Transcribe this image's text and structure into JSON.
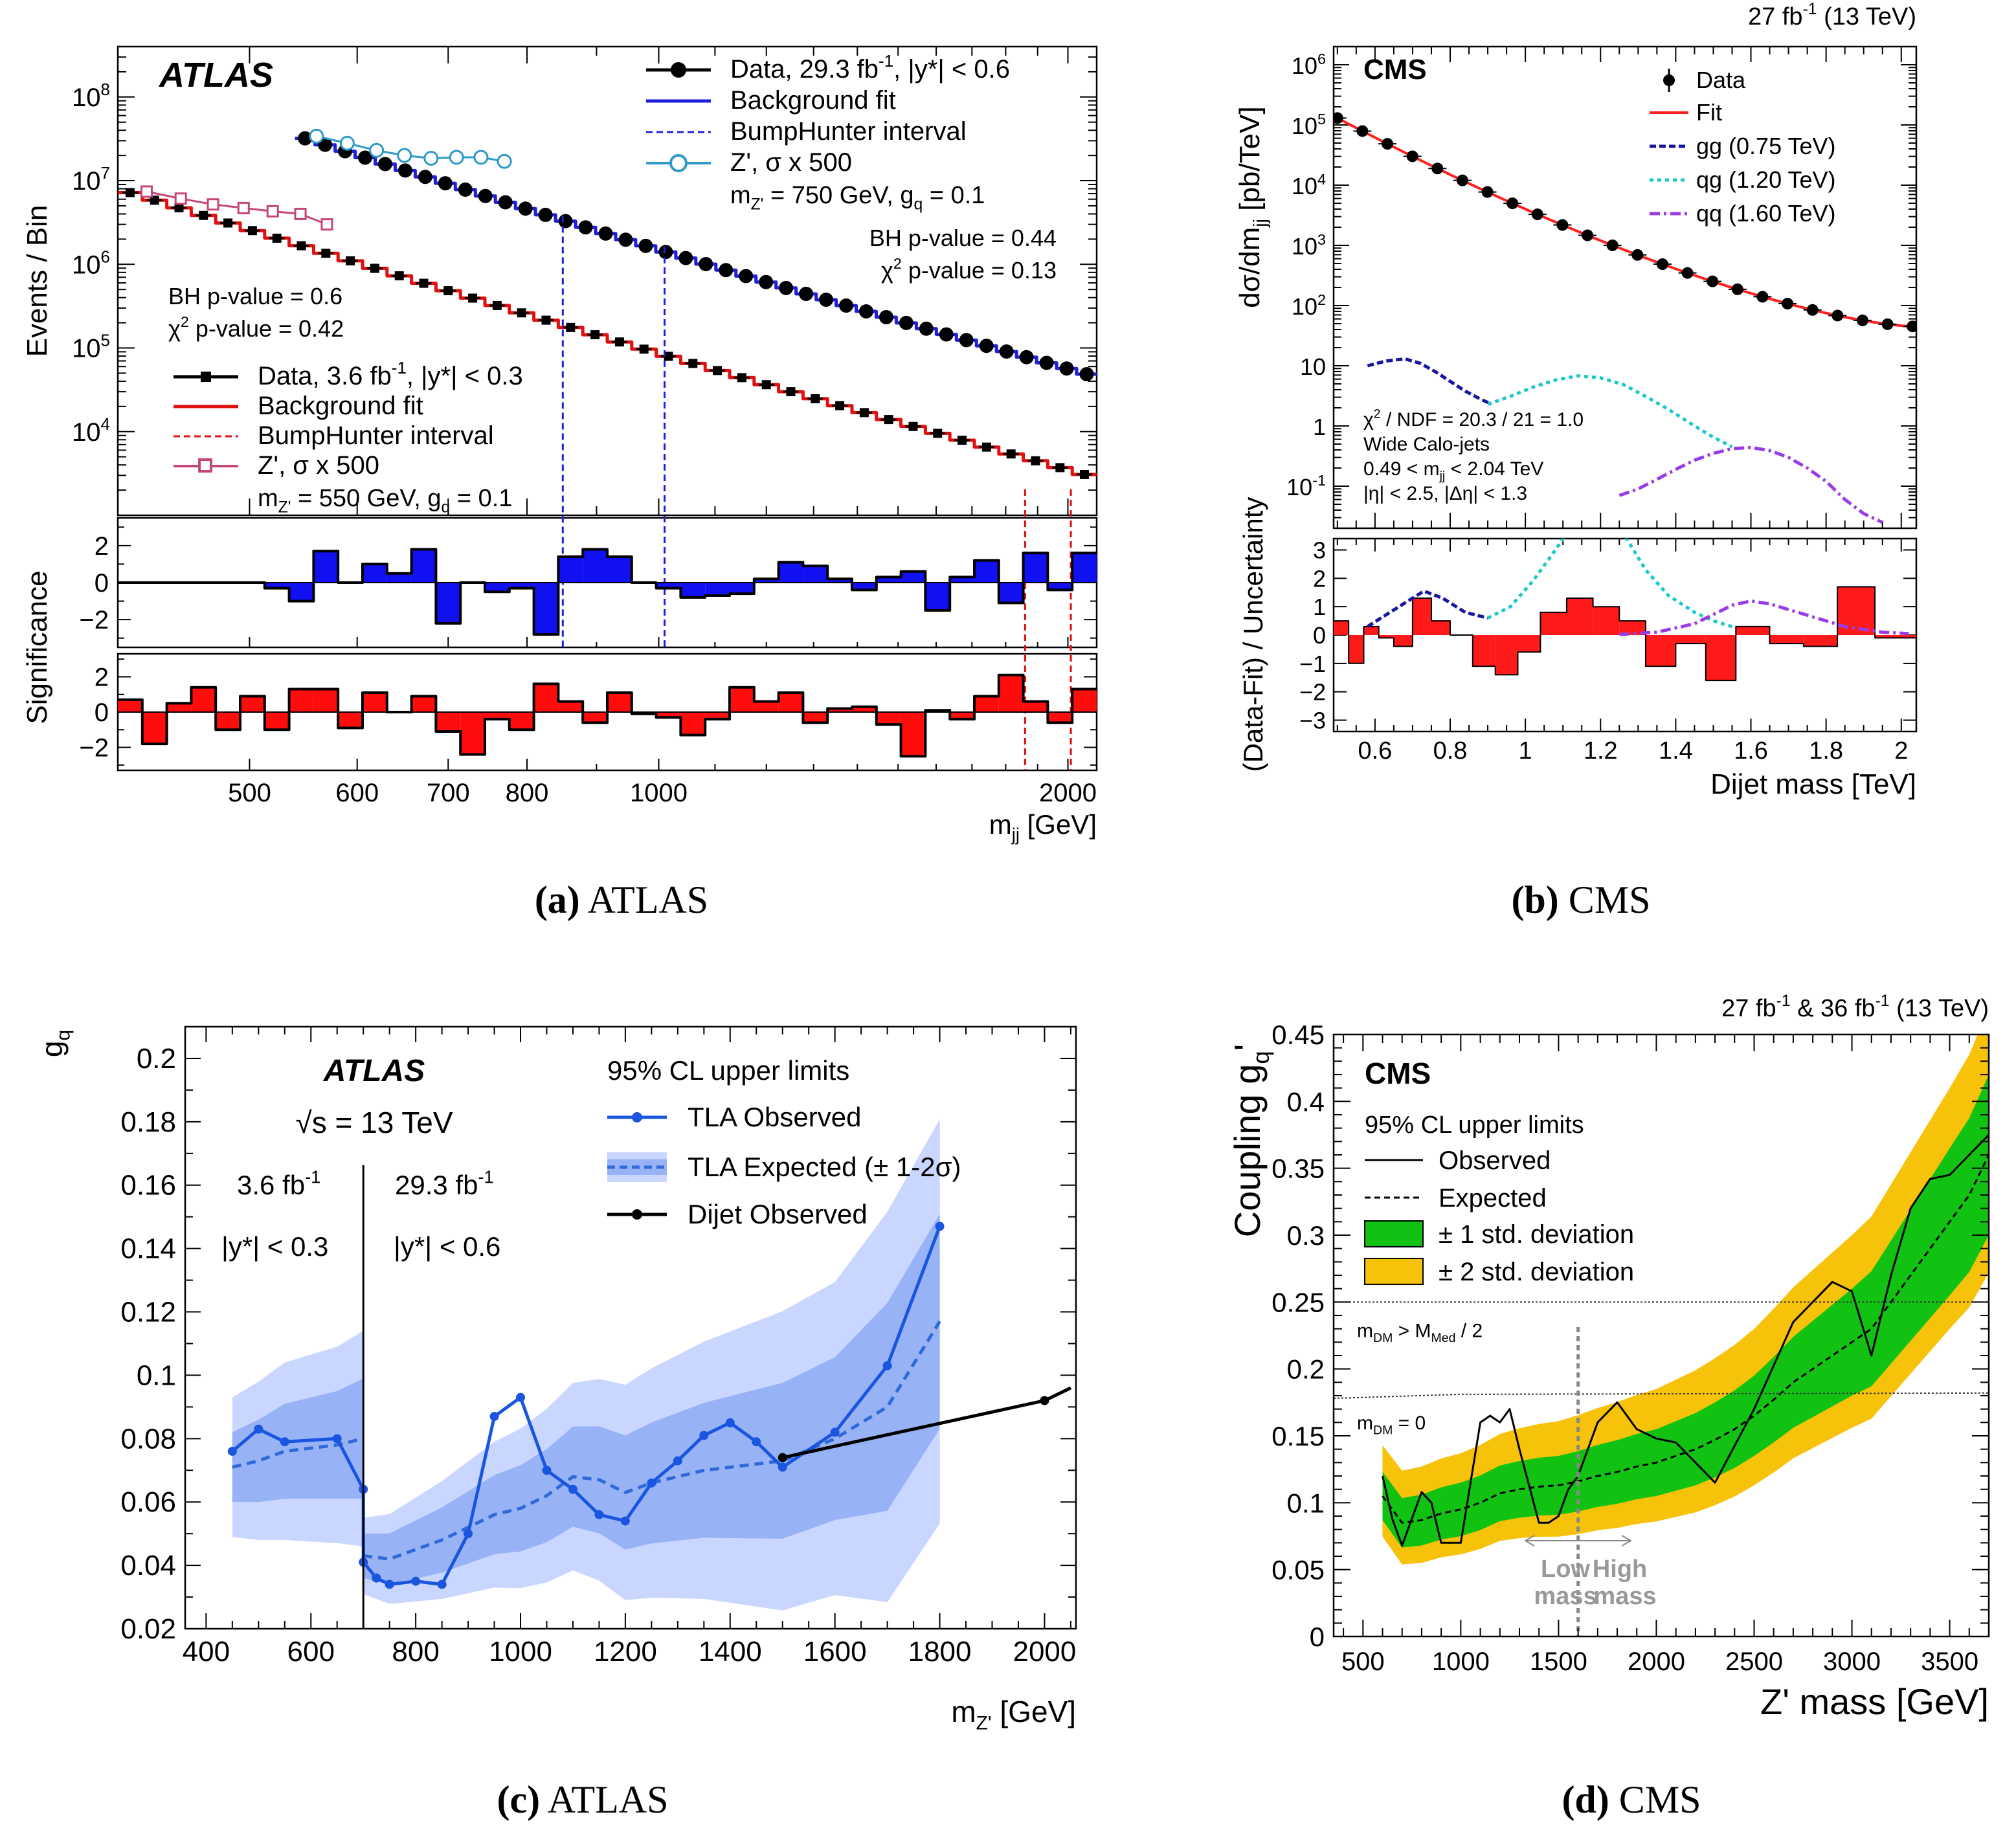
{
  "chart_data": [
    {
      "panel": "a",
      "type": "line",
      "caption_letter": "(a)",
      "caption_text": "ATLAS",
      "experiment": "ATLAS",
      "xlabel": "m_jj [GeV]",
      "xscale": "log",
      "xlim": [
        400,
        2100
      ],
      "x_ticks": [
        500,
        600,
        700,
        800,
        1000,
        2000
      ],
      "ylabel": "Events / Bin",
      "yscale": "log",
      "ylim": [
        1000,
        400000000
      ],
      "y_ticks": [
        "10^4",
        "10^5",
        "10^6",
        "10^7",
        "10^8"
      ],
      "legend_upper": [
        {
          "label": "Data, 29.3 fb^-1, |y*| < 0.6",
          "color": "#000000"
        },
        {
          "label": "Background fit",
          "color": "#1f1fdc"
        },
        {
          "label": "BumpHunter interval",
          "color": "#1f1fdc"
        },
        {
          "label": "Z', σ x 500",
          "color": "#2a9ac9"
        },
        {
          "label": "m_Z' = 750 GeV, g_q = 0.1",
          "color": "#000000"
        }
      ],
      "legend_lower": [
        {
          "label": "Data, 3.6 fb^-1, |y*| < 0.3",
          "color": "#000000"
        },
        {
          "label": "Background fit",
          "color": "#e01010"
        },
        {
          "label": "BumpHunter interval",
          "color": "#e01010"
        },
        {
          "label": "Z', σ x 500",
          "color": "#c8457a"
        },
        {
          "label": "m_Z' = 550 GeV, g_q = 0.1",
          "color": "#000000"
        }
      ],
      "annotations_upper": [
        "BH p-value = 0.44",
        "χ2 p-value = 0.13"
      ],
      "annotations_lower": [
        "BH p-value = 0.6",
        "χ2 p-value = 0.42"
      ],
      "series": [
        {
          "name": "Data, 29.3 fb^-1",
          "x_start": 540,
          "x_end": 2100,
          "y_start": 35000000,
          "y_end": 45000,
          "n_points": 40
        },
        {
          "name": "Data, 3.6 fb^-1",
          "x_start": 400,
          "x_end": 2100,
          "y_start": 8000000,
          "y_end": 2800,
          "n_points": 40
        },
        {
          "name": "Z' 750 GeV",
          "x": [
            560,
            590,
            620,
            650,
            680,
            710,
            740,
            770
          ],
          "y": [
            34000000,
            28000000,
            23000000,
            20000000,
            18500000,
            19000000,
            19000000,
            17000000
          ]
        },
        {
          "name": "Z' 550 GeV",
          "x": [
            420,
            445,
            470,
            495,
            520,
            545,
            570
          ],
          "y": [
            7400000,
            6100000,
            5200000,
            4700000,
            4300000,
            4000000,
            3000000
          ]
        }
      ],
      "bumphunter_upper": [
        850,
        1010
      ],
      "bumphunter_lower": [
        1860,
        2010
      ],
      "significance_ylabel": "Significance",
      "significance_ticks": [
        "2",
        "0",
        "−2"
      ],
      "significance_upper": [
        0,
        0,
        0,
        0,
        0,
        0,
        -0.3,
        -1,
        1.7,
        0,
        1,
        0.5,
        1.8,
        -2.2,
        0,
        -0.5,
        -0.3,
        -2.8,
        1.4,
        1.8,
        1.4,
        0,
        -0.3,
        -0.8,
        -0.7,
        -0.6,
        0.2,
        1.1,
        0.9,
        0.2,
        -0.4,
        0.3,
        0.6,
        -1.5,
        0.3,
        1.2,
        -1.1,
        1.6,
        -0.4,
        1.6
      ],
      "significance_lower": [
        0.7,
        -1.8,
        0.5,
        1.4,
        -1,
        0.9,
        -1,
        1.3,
        1.3,
        -0.9,
        1.1,
        0,
        0.9,
        -1.1,
        -2.4,
        -0.4,
        -1,
        1.6,
        0.6,
        -0.6,
        1.1,
        -0.1,
        -0.3,
        -1.3,
        -0.4,
        1.4,
        0.6,
        1.1,
        -0.6,
        0.2,
        0.3,
        -0.7,
        -2.5,
        0.1,
        -0.4,
        0.9,
        2.1,
        0.6,
        -0.6,
        1.3
      ]
    },
    {
      "panel": "b",
      "type": "line",
      "caption_letter": "(b)",
      "caption_text": "CMS",
      "experiment": "CMS",
      "lumi": "27 fb^-1 (13 TeV)",
      "xlabel": "Dijet mass [TeV]",
      "xlim": [
        0.49,
        2.04
      ],
      "x_ticks": [
        "0.6",
        "0.8",
        "1",
        "1.2",
        "1.4",
        "1.6",
        "1.8",
        "2"
      ],
      "ylabel": "dσ/dm_jj [pb/TeV]",
      "yscale": "log",
      "ylim": [
        0.02,
        2000000
      ],
      "y_ticks": [
        "10^-1",
        "1",
        "10",
        "10^2",
        "10^3",
        "10^4",
        "10^5",
        "10^6"
      ],
      "legend": [
        {
          "label": "Data",
          "color": "#000000"
        },
        {
          "label": "Fit",
          "color": "#ff2020"
        },
        {
          "label": "gg (0.75 TeV)",
          "color": "#1515a0"
        },
        {
          "label": "qg (1.20 TeV)",
          "color": "#1cc8c8"
        },
        {
          "label": "qq (1.60 TeV)",
          "color": "#9a3ce6"
        }
      ],
      "annotations": [
        "χ2 / NDF = 20.3 / 21 = 1.0",
        "Wide Calo-jets",
        "0.49 < m_jj < 2.04 TeV",
        "|η| < 2.5, |Δη| < 1.3"
      ],
      "data": {
        "x_start": 0.5,
        "x_end": 2.03,
        "y_start": 130000,
        "y_end": 45,
        "n_points": 24
      },
      "signals": [
        {
          "name": "gg (0.75 TeV)",
          "x": [
            0.58,
            0.63,
            0.68,
            0.72,
            0.76,
            0.8,
            0.84,
            0.88,
            0.91
          ],
          "y": [
            10,
            12,
            13,
            11,
            8,
            5.5,
            3.8,
            2.8,
            2.3
          ]
        },
        {
          "name": "qg (1.20 TeV)",
          "x": [
            0.9,
            0.96,
            1.02,
            1.08,
            1.14,
            1.2,
            1.26,
            1.32,
            1.38,
            1.45,
            1.5,
            1.55
          ],
          "y": [
            2.3,
            3.1,
            4.4,
            5.8,
            6.8,
            6.3,
            4.9,
            3.1,
            1.9,
            1.0,
            0.65,
            0.45
          ]
        },
        {
          "name": "qq (1.60 TeV)",
          "x": [
            1.25,
            1.3,
            1.35,
            1.4,
            1.45,
            1.5,
            1.55,
            1.6,
            1.65,
            1.7,
            1.75,
            1.8,
            1.85,
            1.9,
            1.95
          ],
          "y": [
            0.07,
            0.09,
            0.13,
            0.19,
            0.27,
            0.35,
            0.42,
            0.44,
            0.39,
            0.3,
            0.2,
            0.12,
            0.06,
            0.035,
            0.025
          ]
        }
      ],
      "residual_ylabel": "(Data-Fit) / Uncertainty",
      "residual_ylim": [
        -3.4,
        3.4
      ],
      "residual_ticks": [
        "3",
        "2",
        "1",
        "0",
        "−1",
        "−2",
        "−3"
      ],
      "residual_bins": [
        0.49,
        0.53,
        0.57,
        0.61,
        0.65,
        0.7,
        0.75,
        0.8,
        0.86,
        0.92,
        0.98,
        1.04,
        1.11,
        1.18,
        1.25,
        1.32,
        1.4,
        1.48,
        1.56,
        1.65,
        1.74,
        1.83,
        1.93,
        2.04
      ],
      "residual_values": [
        0.5,
        -1,
        0.3,
        -0.1,
        -0.4,
        1.3,
        0.5,
        0,
        -1.1,
        -1.4,
        -0.6,
        0.8,
        1.3,
        1,
        0.5,
        -1.1,
        -0.3,
        -1.6,
        0.3,
        -0.3,
        -0.4,
        1.7,
        -0.1
      ]
    },
    {
      "panel": "c",
      "type": "line",
      "caption_letter": "(c)",
      "caption_text": "ATLAS",
      "experiment": "ATLAS",
      "energy": "√s = 13 TeV",
      "xlabel": "m_Z' [GeV]",
      "xlim": [
        360,
        2060
      ],
      "x_ticks": [
        "400",
        "600",
        "800",
        "1000",
        "1200",
        "1400",
        "1600",
        "1800",
        "2000"
      ],
      "ylabel": "g_q",
      "ylim": [
        0.02,
        0.21
      ],
      "y_ticks": [
        "0.02",
        "0.04",
        "0.06",
        "0.08",
        "0.1",
        "0.12",
        "0.14",
        "0.16",
        "0.18",
        "0.2"
      ],
      "legend": [
        {
          "label": "95% CL upper limits",
          "color": "#000000"
        },
        {
          "label": "TLA Observed",
          "color": "#1a55e0"
        },
        {
          "label": "TLA Expected (± 1-2σ)",
          "color": "#2f6ad8"
        },
        {
          "label": "Dijet Observed",
          "color": "#000000"
        }
      ],
      "region_labels": [
        "3.6 fb^-1",
        "|y*| < 0.3",
        "29.3 fb^-1",
        "|y*| < 0.6"
      ],
      "divider_x": 700,
      "tla_observed": {
        "x": [
          450,
          500,
          550,
          650,
          700,
          700,
          725,
          750,
          800,
          850,
          900,
          950,
          1000,
          1050,
          1100,
          1150,
          1200,
          1250,
          1300,
          1350,
          1400,
          1450,
          1500,
          1600,
          1700,
          1800
        ],
        "y": [
          0.076,
          0.083,
          0.079,
          0.08,
          0.064,
          0.041,
          0.036,
          0.034,
          0.035,
          0.034,
          0.05,
          0.087,
          0.093,
          0.07,
          0.064,
          0.056,
          0.054,
          0.066,
          0.073,
          0.081,
          0.085,
          0.079,
          0.071,
          0.082,
          0.103,
          0.147
        ]
      },
      "tla_expected": {
        "x": [
          450,
          500,
          550,
          650,
          700,
          700,
          750,
          800,
          850,
          900,
          950,
          1000,
          1050,
          1100,
          1150,
          1200,
          1250,
          1300,
          1350,
          1400,
          1450,
          1500,
          1600,
          1700,
          1800
        ],
        "y": [
          0.071,
          0.073,
          0.076,
          0.078,
          0.08,
          0.043,
          0.042,
          0.045,
          0.048,
          0.052,
          0.056,
          0.058,
          0.062,
          0.068,
          0.067,
          0.063,
          0.066,
          0.068,
          0.07,
          0.071,
          0.072,
          0.073,
          0.08,
          0.09,
          0.117
        ]
      },
      "dijet_observed": {
        "x": [
          1500,
          2000,
          2050
        ],
        "y": [
          0.074,
          0.092,
          0.096
        ]
      }
    },
    {
      "panel": "d",
      "type": "line",
      "caption_letter": "(d)",
      "caption_text": "CMS",
      "experiment": "CMS",
      "lumi": "27 fb^-1 & 36 fb^-1 (13 TeV)",
      "xlabel": "Z' mass [GeV]",
      "xlim": [
        350,
        3700
      ],
      "x_ticks": [
        "500",
        "1000",
        "1500",
        "2000",
        "2500",
        "3000",
        "3500"
      ],
      "ylabel": "Coupling g_q'",
      "ylim": [
        0,
        0.45
      ],
      "y_ticks": [
        "0",
        "0.05",
        "0.1",
        "0.15",
        "0.2",
        "0.25",
        "0.3",
        "0.35",
        "0.4",
        "0.45"
      ],
      "legend": [
        {
          "label": "95% CL upper limits",
          "color": "#000000"
        },
        {
          "label": "Observed",
          "color": "#000000"
        },
        {
          "label": "Expected",
          "color": "#000000"
        },
        {
          "label": "± 1 std. deviation",
          "color": "#12c212"
        },
        {
          "label": "± 2 std. deviation",
          "color": "#f7c20a"
        }
      ],
      "reference_lines": [
        {
          "label": "m_DM > M_Med / 2",
          "y": 0.25
        },
        {
          "label": "m_DM = 0",
          "y": 0.182
        }
      ],
      "mass_split": {
        "x": 1600,
        "low_label": "Low mass",
        "high_label": "High mass"
      },
      "observed": {
        "x": [
          600,
          650,
          700,
          800,
          850,
          900,
          1000,
          1100,
          1150,
          1200,
          1250,
          1300,
          1400,
          1450,
          1500,
          1550,
          1600,
          1700,
          1800,
          1900,
          2000,
          2100,
          2200,
          2300,
          2500,
          2700,
          2900,
          3000,
          3100,
          3200,
          3300,
          3400,
          3500,
          3600,
          3700
        ],
        "y": [
          0.12,
          0.088,
          0.068,
          0.108,
          0.1,
          0.07,
          0.07,
          0.16,
          0.165,
          0.16,
          0.17,
          0.14,
          0.085,
          0.085,
          0.09,
          0.11,
          0.12,
          0.16,
          0.175,
          0.155,
          0.148,
          0.145,
          0.13,
          0.115,
          0.17,
          0.235,
          0.265,
          0.258,
          0.21,
          0.27,
          0.32,
          0.342,
          0.345,
          0.36,
          0.375
        ]
      },
      "expected": {
        "x": [
          600,
          700,
          800,
          900,
          1000,
          1100,
          1200,
          1300,
          1400,
          1500,
          1600,
          1700,
          1800,
          1900,
          2000,
          2100,
          2200,
          2300,
          2400,
          2500,
          2600,
          2700,
          2800,
          2900,
          3000,
          3100,
          3200,
          3300,
          3400,
          3500,
          3600,
          3700
        ],
        "y": [
          0.105,
          0.085,
          0.087,
          0.092,
          0.095,
          0.1,
          0.107,
          0.11,
          0.112,
          0.113,
          0.116,
          0.12,
          0.123,
          0.127,
          0.13,
          0.135,
          0.14,
          0.147,
          0.155,
          0.165,
          0.177,
          0.19,
          0.2,
          0.21,
          0.22,
          0.23,
          0.25,
          0.27,
          0.29,
          0.31,
          0.33,
          0.36
        ]
      },
      "band_1sigma_halfwidth": {
        "x": [
          600,
          1000,
          1500,
          2000,
          2500,
          3000,
          3500,
          3700
        ],
        "y": [
          0.018,
          0.02,
          0.022,
          0.025,
          0.03,
          0.04,
          0.055,
          0.06
        ]
      },
      "band_2sigma_halfwidth": {
        "x": [
          600,
          1000,
          1500,
          2000,
          2500,
          3000,
          3500,
          3700
        ],
        "y": [
          0.038,
          0.042,
          0.048,
          0.055,
          0.065,
          0.08,
          0.1,
          0.11
        ]
      }
    }
  ]
}
